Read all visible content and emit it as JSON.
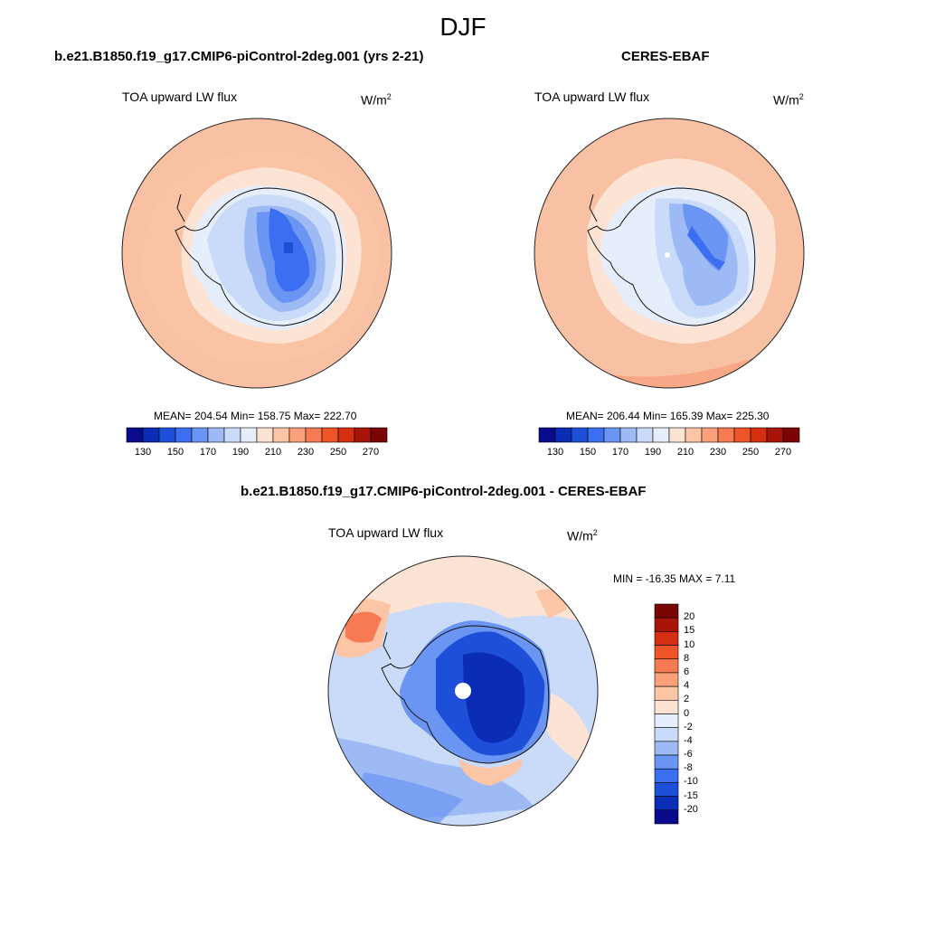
{
  "season": "DJF",
  "panels": {
    "model": {
      "title": "b.e21.B1850.f19_g17.CMIP6-piControl-2deg.001 (yrs 2-21)",
      "variable": "TOA upward LW flux",
      "units": "W/m",
      "units_sup": "2",
      "stats": "MEAN= 204.54  Min= 158.75  Max= 222.70"
    },
    "obs": {
      "title": "CERES-EBAF",
      "variable": "TOA upward LW flux",
      "units": "W/m",
      "units_sup": "2",
      "stats": "MEAN= 206.44  Min= 165.39  Max= 225.30"
    },
    "diff": {
      "title": "b.e21.B1850.f19_g17.CMIP6-piControl-2deg.001 - CERES-EBAF",
      "variable": "TOA upward LW flux",
      "units": "W/m",
      "units_sup": "2",
      "stats": "MIN = -16.35 MAX =   7.11"
    }
  },
  "colorbar_abs": {
    "colors": [
      "#0a0a8c",
      "#0b2cb5",
      "#1e4fd8",
      "#3b6ef0",
      "#6b95f2",
      "#9dbaf5",
      "#c9dbf8",
      "#e6eefb",
      "#fde3d3",
      "#fcc5a6",
      "#fba07b",
      "#f77a52",
      "#ee5528",
      "#d32f10",
      "#a81408",
      "#7a0403"
    ],
    "tick_labels": [
      "130",
      "150",
      "170",
      "190",
      "210",
      "230",
      "250",
      "270"
    ]
  },
  "colorbar_diff": {
    "colors": [
      "#7a0403",
      "#a81408",
      "#d32f10",
      "#ee5528",
      "#f77a52",
      "#fba07b",
      "#fcc5a6",
      "#fde3d3",
      "#e6eefb",
      "#c9dbf8",
      "#9dbaf5",
      "#6b95f2",
      "#3b6ef0",
      "#1e4fd8",
      "#0b2cb5",
      "#0a0a8c"
    ],
    "tick_labels": [
      "20",
      "15",
      "10",
      "8",
      "6",
      "4",
      "2",
      "0",
      "-2",
      "-4",
      "-6",
      "-8",
      "-10",
      "-15",
      "-20"
    ]
  },
  "map_colors": {
    "ocean_abs": "#f9c1a3",
    "ocean_abs_dark": "#f8a887",
    "ice_ring": "#fde3d3",
    "coast_pale": "#e6eefb",
    "land_light": "#c9dbf8",
    "land_mid": "#9dbaf5",
    "land_blue": "#6b95f2",
    "land_deep": "#3b6ef0",
    "land_core": "#1e4fd8",
    "diff_ocean": "#c9dbf8",
    "diff_ocean_mid": "#9dbaf5",
    "diff_pos": "#fde3d3",
    "diff_pos2": "#fcc5a6",
    "diff_pos3": "#f77a52",
    "diff_land": "#1e4fd8",
    "diff_land_deep": "#0b2cb5"
  }
}
